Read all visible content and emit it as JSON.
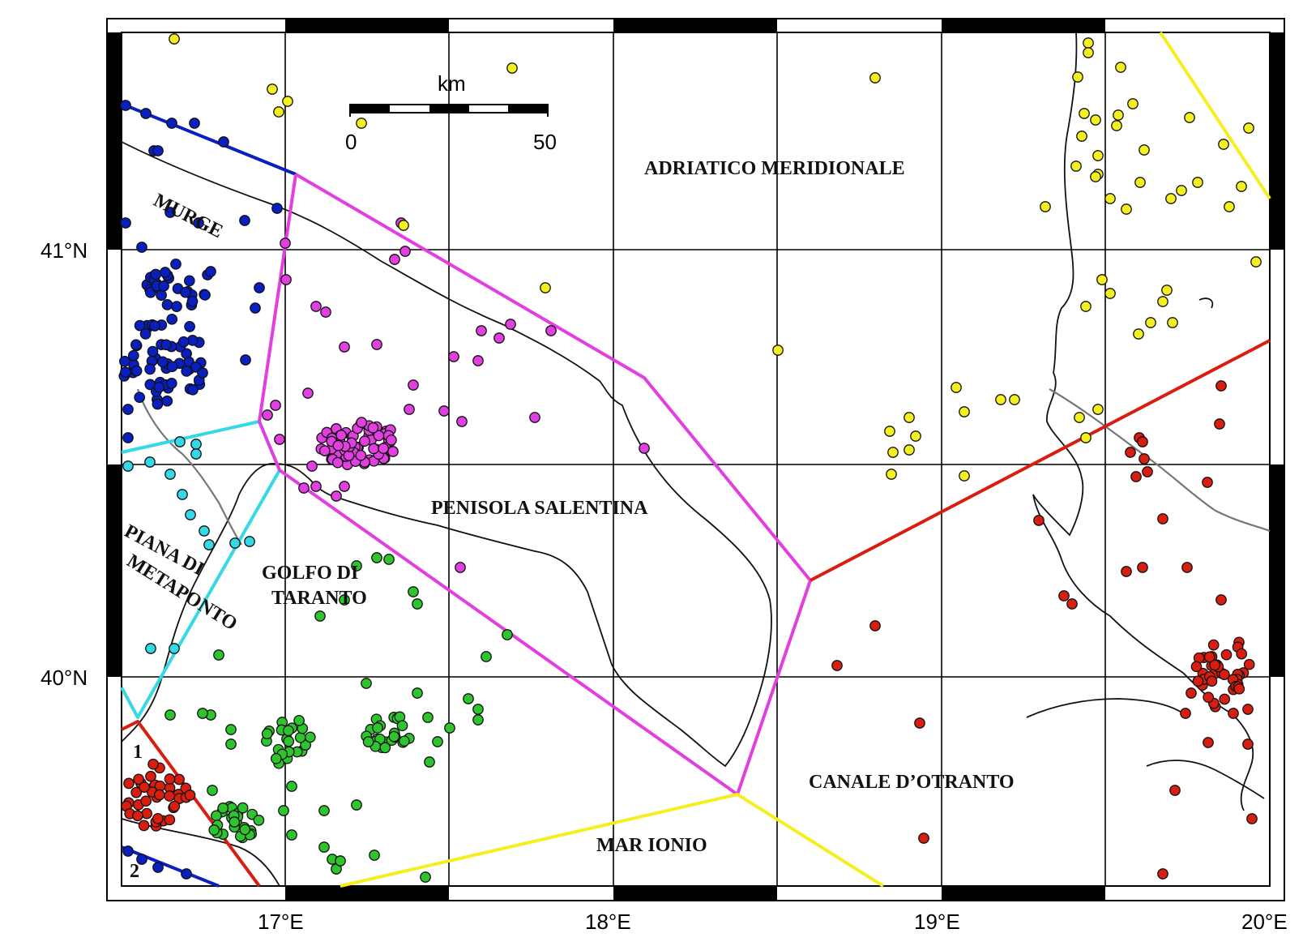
{
  "axes": {
    "lat_labels": [
      "41°N",
      "40°N"
    ],
    "lon_labels": [
      "17°E",
      "18°E",
      "19°E",
      "20°E"
    ]
  },
  "scale_bar": {
    "unit": "km",
    "start": "0",
    "end": "50"
  },
  "region_labels": {
    "adriatico": "ADRIATICO MERIDIONALE",
    "murge": "MURGE",
    "penisola": "PENISOLA SALENTINA",
    "golfo_1": "GOLFO DI",
    "golfo_2": "TARANTO",
    "piana_1": "PIANA DI",
    "piana_2": "METAPONTO",
    "canale": "CANALE D’OTRANTO",
    "mar_ionio": "MAR IONIO",
    "zone_1": "1",
    "zone_2": "2"
  },
  "colors": {
    "blue": "#0a1fbf",
    "cyan": "#34d8e6",
    "magenta": "#e23fe0",
    "yellow": "#f5ee20",
    "red": "#d81e10",
    "green": "#2ec42e"
  }
}
